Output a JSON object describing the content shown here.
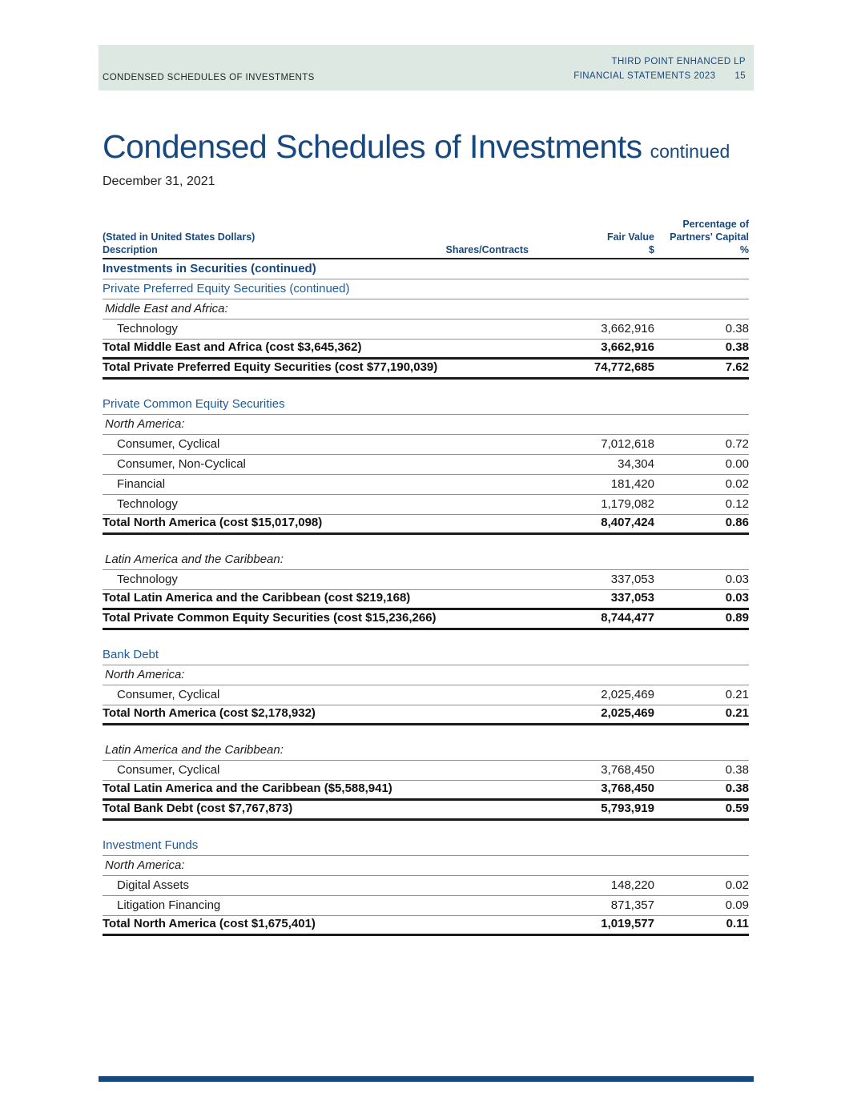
{
  "page_header": {
    "left": "CONDENSED SCHEDULES OF INVESTMENTS",
    "right_line1": "THIRD POINT ENHANCED LP",
    "right_line2": "FINANCIAL STATEMENTS 2023",
    "page_number": "15"
  },
  "title": {
    "main": "Condensed Schedules of Investments",
    "suffix": "continued",
    "date": "December 31, 2021"
  },
  "colors": {
    "band_background": "#dde8e2",
    "navy_accent": "#17497e",
    "section_blue": "#1e5b99",
    "body_text": "#1a1a1a"
  },
  "table": {
    "header": {
      "stated_in": "(Stated in United States Dollars)",
      "col_description": "Description",
      "col_shares": "Shares/Contracts",
      "col_fair_value": "Fair Value",
      "col_fair_value_unit": "$",
      "col_pct_line0": "Percentage of",
      "col_pct_line1": "Partners' Capital",
      "col_pct_unit": "%"
    },
    "rows": [
      {
        "type": "section-bold",
        "label": "Investments in Securities (continued)",
        "fv": "",
        "pct": "",
        "rule": "thin"
      },
      {
        "type": "section-blue",
        "label": "Private Preferred Equity Securities (continued)",
        "fv": "",
        "pct": "",
        "rule": "thin"
      },
      {
        "type": "region",
        "label": "Middle East and Africa:",
        "fv": "",
        "pct": "",
        "rule": "thin"
      },
      {
        "type": "item",
        "label": "Technology",
        "fv": "3,662,916",
        "pct": "0.38",
        "rule": "thin"
      },
      {
        "type": "total",
        "label": "Total Middle East and Africa (cost $3,645,362)",
        "fv": "3,662,916",
        "pct": "0.38",
        "rule": "thick"
      },
      {
        "type": "total",
        "label": "Total Private Preferred Equity Securities (cost $77,190,039)",
        "fv": "74,772,685",
        "pct": "7.62",
        "rule": "thick"
      },
      {
        "type": "section-blue",
        "label": "Private Common Equity Securities",
        "fv": "",
        "pct": "",
        "rule": "thin",
        "gap": true
      },
      {
        "type": "region",
        "label": "North America:",
        "fv": "",
        "pct": "",
        "rule": "thin"
      },
      {
        "type": "item",
        "label": "Consumer, Cyclical",
        "fv": "7,012,618",
        "pct": "0.72",
        "rule": "thin"
      },
      {
        "type": "item",
        "label": "Consumer, Non-Cyclical",
        "fv": "34,304",
        "pct": "0.00",
        "rule": "thin"
      },
      {
        "type": "item",
        "label": "Financial",
        "fv": "181,420",
        "pct": "0.02",
        "rule": "thin"
      },
      {
        "type": "item",
        "label": "Technology",
        "fv": "1,179,082",
        "pct": "0.12",
        "rule": "thin"
      },
      {
        "type": "total",
        "label": "Total North America (cost $15,017,098)",
        "fv": "8,407,424",
        "pct": "0.86",
        "rule": "thick"
      },
      {
        "type": "region",
        "label": "Latin America and the Caribbean:",
        "fv": "",
        "pct": "",
        "rule": "thin",
        "gap": true
      },
      {
        "type": "item",
        "label": "Technology",
        "fv": "337,053",
        "pct": "0.03",
        "rule": "thin"
      },
      {
        "type": "total",
        "label": "Total Latin America and the Caribbean (cost $219,168)",
        "fv": "337,053",
        "pct": "0.03",
        "rule": "thick"
      },
      {
        "type": "total",
        "label": "Total Private Common Equity Securities (cost $15,236,266)",
        "fv": "8,744,477",
        "pct": "0.89",
        "rule": "thick"
      },
      {
        "type": "section-blue",
        "label": "Bank Debt",
        "fv": "",
        "pct": "",
        "rule": "thin",
        "gap": true
      },
      {
        "type": "region",
        "label": "North America:",
        "fv": "",
        "pct": "",
        "rule": "thin"
      },
      {
        "type": "item",
        "label": "Consumer, Cyclical",
        "fv": "2,025,469",
        "pct": "0.21",
        "rule": "thin"
      },
      {
        "type": "total",
        "label": "Total North America (cost $2,178,932)",
        "fv": "2,025,469",
        "pct": "0.21",
        "rule": "thick"
      },
      {
        "type": "region",
        "label": "Latin America and the Caribbean:",
        "fv": "",
        "pct": "",
        "rule": "thin",
        "gap": true
      },
      {
        "type": "item",
        "label": "Consumer, Cyclical",
        "fv": "3,768,450",
        "pct": "0.38",
        "rule": "thin"
      },
      {
        "type": "total",
        "label": "Total Latin America and the Caribbean ($5,588,941)",
        "fv": "3,768,450",
        "pct": "0.38",
        "rule": "thick"
      },
      {
        "type": "total",
        "label": "Total Bank Debt (cost $7,767,873)",
        "fv": "5,793,919",
        "pct": "0.59",
        "rule": "thick"
      },
      {
        "type": "section-blue",
        "label": "Investment Funds",
        "fv": "",
        "pct": "",
        "rule": "thin",
        "gap": true
      },
      {
        "type": "region",
        "label": "North America:",
        "fv": "",
        "pct": "",
        "rule": "thin"
      },
      {
        "type": "item",
        "label": "Digital Assets",
        "fv": "148,220",
        "pct": "0.02",
        "rule": "thin"
      },
      {
        "type": "item",
        "label": "Litigation Financing",
        "fv": "871,357",
        "pct": "0.09",
        "rule": "thin"
      },
      {
        "type": "total",
        "label": "Total North America (cost $1,675,401)",
        "fv": "1,019,577",
        "pct": "0.11",
        "rule": "thick"
      }
    ]
  }
}
